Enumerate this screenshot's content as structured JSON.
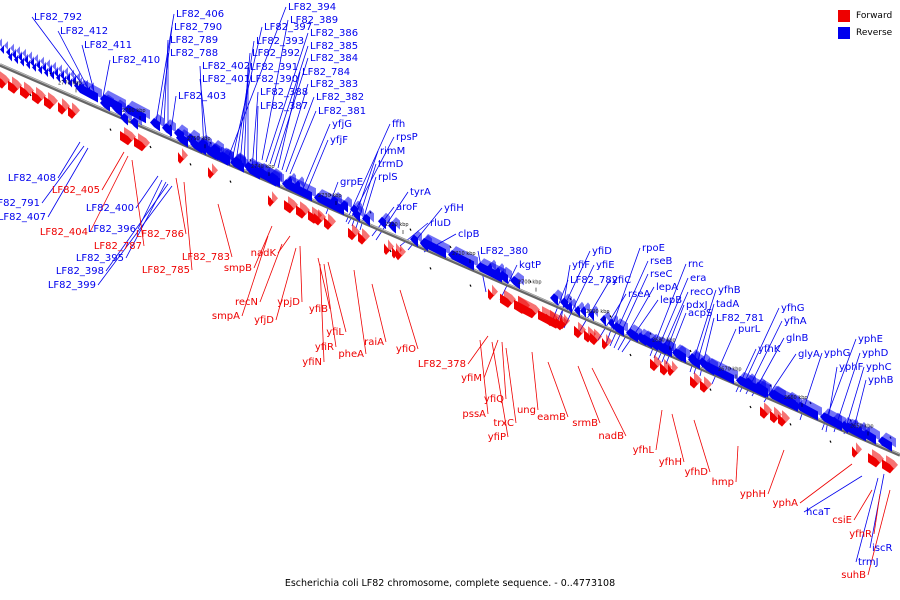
{
  "legend": {
    "forward_label": "Forward",
    "reverse_label": "Reverse",
    "forward_color": "#ee0000",
    "reverse_color": "#0000ee"
  },
  "caption": "Escherichia coli LF82 chromosome, complete sequence. - 0..4773108",
  "ticks": [
    "2770 kbp",
    "2760 kbp",
    "2750 kbp",
    "2740 kbp",
    "2730 kbp",
    "2720 kbp",
    "2710 kbp",
    "2700 kbp",
    "2690 kbp",
    "2680 kbp",
    "2670 kbp",
    "2660 kbp",
    "2650 kbp"
  ],
  "reverse_labels_above": [
    "LF82_792",
    "LF82_412",
    "LF82_411",
    "LF82_410",
    "LF82_406",
    "LF82_790",
    "LF82_789",
    "LF82_788",
    "LF82_402",
    "LF82_401",
    "LF82_403",
    "LF82_394",
    "LF82_397",
    "LF82_393",
    "LF82_392",
    "LF82_391",
    "LF82_390",
    "LF82_388",
    "LF82_387",
    "LF82_389",
    "LF82_386",
    "LF82_385",
    "LF82_384",
    "LF82_784",
    "LF82_383",
    "LF82_382",
    "LF82_381",
    "yfjG",
    "yfjF",
    "ffh",
    "rpsP",
    "rimM",
    "trmD",
    "rplS",
    "grpE",
    "tyrA",
    "aroF",
    "yfiH",
    "rluD",
    "clpB",
    "LF82_380",
    "kgtP",
    "yfiD",
    "yfiF",
    "yfiE",
    "LF82_782",
    "yfiC",
    "rpoE",
    "rseB",
    "rseC",
    "rseA",
    "lepA",
    "lepB",
    "rnc",
    "era",
    "recO",
    "pdxJ",
    "acpS",
    "yfhB",
    "tadA",
    "LF82_781",
    "purL",
    "yfhG",
    "yfhA",
    "glnB",
    "yfhK",
    "glyA",
    "yphG",
    "yphE",
    "yphD",
    "yphF",
    "yphC",
    "yphB"
  ],
  "reverse_labels_below": [
    "LF82_408",
    "LF82_791",
    "LF82_407",
    "LF82_400",
    "LF82_396",
    "LF82_395",
    "LF82_398",
    "LF82_399",
    "hcaT",
    "trmJ",
    "iscR"
  ],
  "forward_labels_below": [
    "LF82_405",
    "LF82_404",
    "LF82_787",
    "LF82_786",
    "LF82_785",
    "LF82_783",
    "smpB",
    "nadK",
    "recN",
    "smpA",
    "ypjD",
    "yfjD",
    "yfiB",
    "yfiL",
    "yfiR",
    "yfiN",
    "raiA",
    "pheA",
    "yfiO",
    "LF82_378",
    "yfiM",
    "yfiQ",
    "pssA",
    "trxC",
    "yfiP",
    "ung",
    "eamB",
    "srmB",
    "nadB",
    "yfhL",
    "yfhH",
    "yfhD",
    "hmp",
    "yphH",
    "yphA",
    "csiE",
    "yfhR",
    "suhB"
  ]
}
